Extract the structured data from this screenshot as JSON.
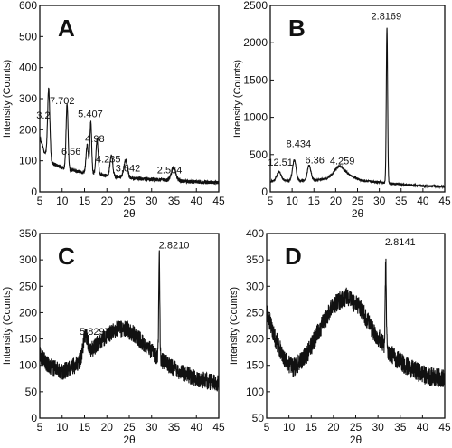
{
  "chart_data": [
    {
      "panel": "A",
      "type": "line",
      "xlabel": "2θ",
      "ylabel": "Intensity (Counts)",
      "xlim": [
        5,
        45
      ],
      "ylim": [
        0,
        600
      ],
      "xticks": [
        5,
        10,
        15,
        20,
        25,
        30,
        35,
        40,
        45
      ],
      "yticks": [
        0,
        100,
        200,
        300,
        400,
        500,
        600
      ],
      "baseline": [
        [
          3,
          600
        ],
        [
          3.5,
          440
        ],
        [
          4,
          320
        ],
        [
          4.5,
          230
        ],
        [
          5,
          175
        ],
        [
          6,
          130
        ],
        [
          7,
          105
        ],
        [
          8,
          90
        ],
        [
          10,
          78
        ],
        [
          12,
          70
        ],
        [
          15,
          62
        ],
        [
          20,
          52
        ],
        [
          25,
          45
        ],
        [
          30,
          40
        ],
        [
          35,
          36
        ],
        [
          40,
          32
        ],
        [
          45,
          30
        ]
      ],
      "peaks": [
        {
          "x": 7.0,
          "y": 225,
          "w": 0.25
        },
        {
          "x": 11.1,
          "y": 210,
          "w": 0.22
        },
        {
          "x": 15.6,
          "y": 92,
          "w": 0.25
        },
        {
          "x": 16.4,
          "y": 165,
          "w": 0.2
        },
        {
          "x": 17.8,
          "y": 112,
          "w": 0.25
        },
        {
          "x": 21.0,
          "y": 68,
          "w": 0.3
        },
        {
          "x": 24.2,
          "y": 55,
          "w": 0.4
        },
        {
          "x": 34.9,
          "y": 42,
          "w": 0.5
        }
      ],
      "noise": 6,
      "annotations": [
        {
          "text": "3.2",
          "x": 5.8,
          "y": 236
        },
        {
          "text": "7.702",
          "x": 10.0,
          "y": 283
        },
        {
          "text": "6.56",
          "x": 12.0,
          "y": 120
        },
        {
          "text": "5.407",
          "x": 16.3,
          "y": 240
        },
        {
          "text": "4.98",
          "x": 17.3,
          "y": 160
        },
        {
          "text": "4.235",
          "x": 20.3,
          "y": 95
        },
        {
          "text": "3.642",
          "x": 24.7,
          "y": 65
        },
        {
          "text": "2.564",
          "x": 34.0,
          "y": 60
        }
      ]
    },
    {
      "panel": "B",
      "type": "line",
      "xlabel": "2θ",
      "ylabel": "Intensity (Counts)",
      "xlim": [
        5,
        45
      ],
      "ylim": [
        0,
        2500
      ],
      "xticks": [
        5,
        10,
        15,
        20,
        25,
        30,
        35,
        40,
        45
      ],
      "yticks": [
        0,
        500,
        1000,
        1500,
        2000,
        2500
      ],
      "baseline": [
        [
          5,
          140
        ],
        [
          8,
          150
        ],
        [
          12,
          150
        ],
        [
          16,
          160
        ],
        [
          18,
          180
        ],
        [
          20,
          260
        ],
        [
          22,
          270
        ],
        [
          24,
          200
        ],
        [
          26,
          150
        ],
        [
          30,
          130
        ],
        [
          35,
          100
        ],
        [
          40,
          80
        ],
        [
          45,
          70
        ]
      ],
      "peaks": [
        {
          "x": 7.0,
          "y": 120,
          "w": 0.5
        },
        {
          "x": 10.5,
          "y": 280,
          "w": 0.4
        },
        {
          "x": 13.9,
          "y": 200,
          "w": 0.4
        },
        {
          "x": 20.8,
          "y": 80,
          "w": 0.8
        },
        {
          "x": 31.75,
          "y": 2090,
          "w": 0.15
        }
      ],
      "noise": 15,
      "annotations": [
        {
          "text": "12.51",
          "x": 7.3,
          "y": 350
        },
        {
          "text": "8.434",
          "x": 11.5,
          "y": 600
        },
        {
          "text": "6.36",
          "x": 15.2,
          "y": 380
        },
        {
          "text": "4.259",
          "x": 21.5,
          "y": 370
        },
        {
          "text": "2.8169",
          "x": 31.6,
          "y": 2310
        }
      ]
    },
    {
      "panel": "C",
      "type": "line",
      "xlabel": "2θ",
      "ylabel": "Intensity (Counts)",
      "xlim": [
        5,
        45
      ],
      "ylim": [
        0,
        350
      ],
      "xticks": [
        5,
        10,
        15,
        20,
        25,
        30,
        35,
        40,
        45
      ],
      "yticks": [
        0,
        50,
        100,
        150,
        200,
        250,
        300,
        350
      ],
      "baseline": [
        [
          5,
          120
        ],
        [
          7,
          100
        ],
        [
          10,
          88
        ],
        [
          13,
          100
        ],
        [
          16,
          125
        ],
        [
          19,
          150
        ],
        [
          22,
          168
        ],
        [
          24,
          170
        ],
        [
          26,
          160
        ],
        [
          29,
          135
        ],
        [
          32,
          110
        ],
        [
          36,
          90
        ],
        [
          40,
          75
        ],
        [
          45,
          65
        ]
      ],
      "peaks": [
        {
          "x": 15.2,
          "y": 40,
          "w": 0.5
        },
        {
          "x": 31.7,
          "y": 205,
          "w": 0.12
        }
      ],
      "noise": 16,
      "annotations": [
        {
          "text": "5.8297",
          "x": 17.3,
          "y": 158
        },
        {
          "text": "2.8210",
          "x": 35.0,
          "y": 322
        }
      ]
    },
    {
      "panel": "D",
      "type": "line",
      "xlabel": "2θ",
      "ylabel": "Intensity (Counts)",
      "xlim": [
        5,
        45
      ],
      "ylim": [
        50,
        400
      ],
      "xticks": [
        5,
        10,
        15,
        20,
        25,
        30,
        35,
        40,
        45
      ],
      "yticks": [
        50,
        100,
        150,
        200,
        250,
        300,
        350,
        400
      ],
      "baseline": [
        [
          5,
          250
        ],
        [
          7,
          200
        ],
        [
          9,
          160
        ],
        [
          11,
          145
        ],
        [
          14,
          170
        ],
        [
          17,
          220
        ],
        [
          20,
          265
        ],
        [
          23,
          280
        ],
        [
          26,
          260
        ],
        [
          29,
          215
        ],
        [
          33,
          170
        ],
        [
          37,
          145
        ],
        [
          41,
          130
        ],
        [
          45,
          125
        ]
      ],
      "peaks": [
        {
          "x": 31.75,
          "y": 160,
          "w": 0.12
        }
      ],
      "noise": 18,
      "annotations": [
        {
          "text": "2.8141",
          "x": 35.0,
          "y": 378
        }
      ]
    }
  ]
}
